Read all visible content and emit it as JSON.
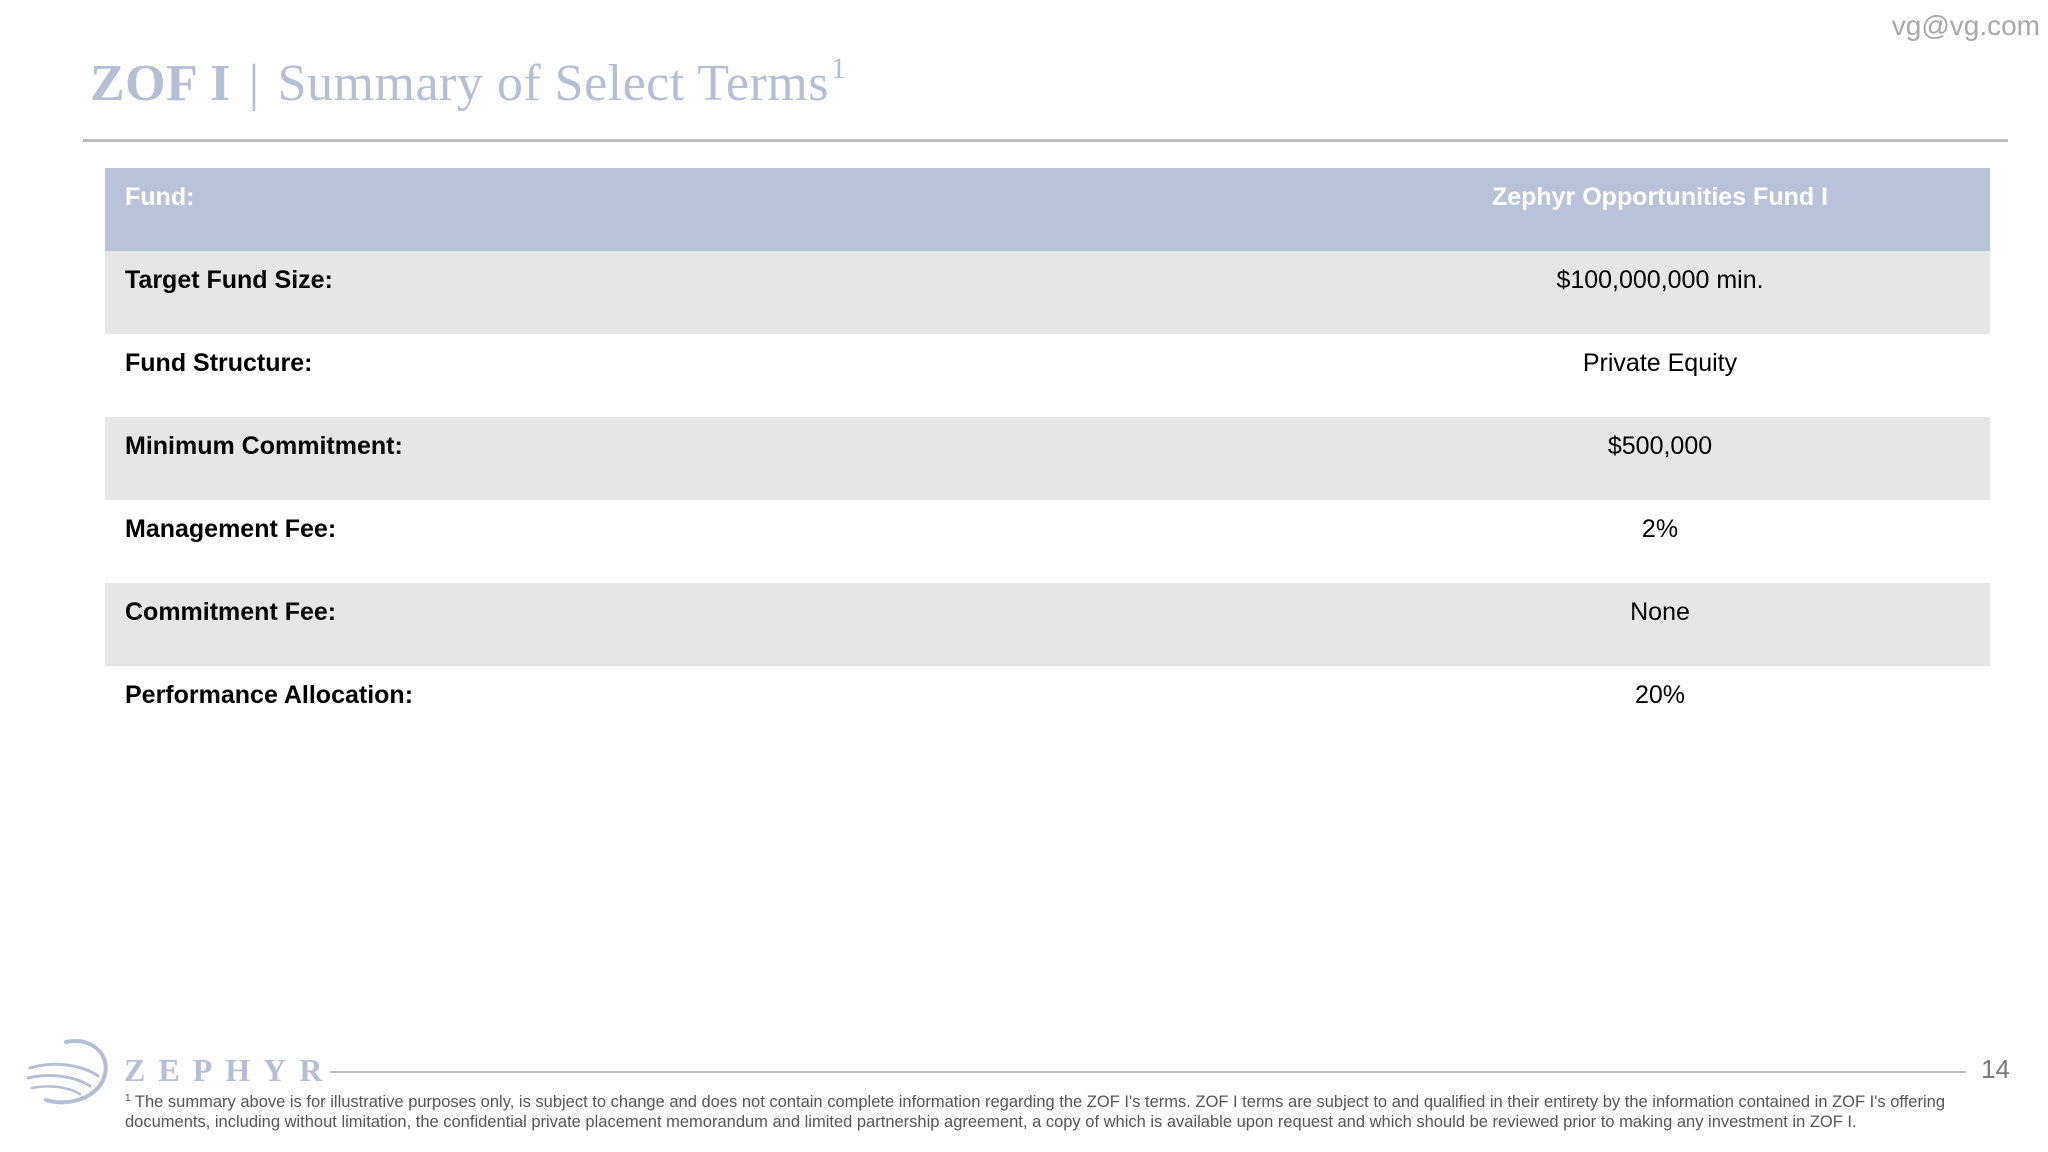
{
  "header": {
    "email": "vg@vg.com",
    "title_bold": "ZOF I",
    "title_separator": "|",
    "title_rest": "Summary of Select Terms",
    "title_superscript": "1"
  },
  "table": {
    "rows": [
      {
        "label": "Fund:",
        "value": "Zephyr Opportunities Fund I",
        "style": "header"
      },
      {
        "label": "Target Fund Size:",
        "value": "$100,000,000 min.",
        "style": "shaded"
      },
      {
        "label": "Fund Structure:",
        "value": "Private Equity",
        "style": "plain"
      },
      {
        "label": "Minimum Commitment:",
        "value": "$500,000",
        "style": "shaded"
      },
      {
        "label": "Management Fee:",
        "value": "2%",
        "style": "plain"
      },
      {
        "label": "Commitment Fee:",
        "value": "None",
        "style": "shaded"
      },
      {
        "label": "Performance Allocation:",
        "value": "20%",
        "style": "plain"
      }
    ]
  },
  "footer": {
    "logo_text": "ZEPHYR",
    "logo_icon": "wind-swirl-logo-icon",
    "page_number": "14",
    "footnote_marker": "1",
    "footnote": "The summary above is for illustrative purposes only, is subject to change and does not contain complete information regarding the ZOF I's terms. ZOF I terms are subject to and qualified in their entirety by the information contained in ZOF I's offering documents, including without limitation, the confidential private placement memorandum and limited partnership agreement, a copy of which is available upon request and which should be reviewed prior to making any investment in ZOF I."
  },
  "colors": {
    "accent": "#b8c3da",
    "title": "#b4bfd6",
    "row_shade": "#e6e6e6",
    "rule": "#bdbdbd"
  }
}
